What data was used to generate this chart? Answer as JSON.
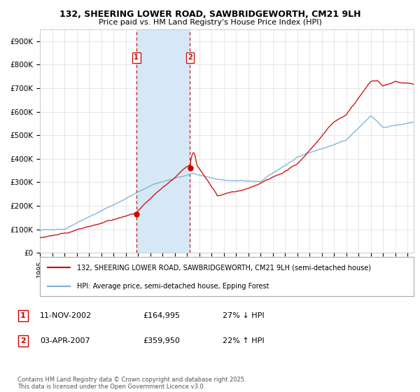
{
  "title": "132, SHEERING LOWER ROAD, SAWBRIDGEWORTH, CM21 9LH",
  "subtitle": "Price paid vs. HM Land Registry's House Price Index (HPI)",
  "house_label": "132, SHEERING LOWER ROAD, SAWBRIDGEWORTH, CM21 9LH (semi-detached house)",
  "hpi_label": "HPI: Average price, semi-detached house, Epping Forest",
  "house_color": "#cc0000",
  "hpi_color": "#7ab0d4",
  "sale1_date_num": 2002.87,
  "sale1_price": 164995,
  "sale2_date_num": 2007.25,
  "sale2_price": 359950,
  "shading_color": "#d6e8f5",
  "vline_color": "#cc0000",
  "ylim": [
    0,
    950000
  ],
  "xlim": [
    1995.0,
    2025.5
  ],
  "ylabel_ticks": [
    0,
    100000,
    200000,
    300000,
    400000,
    500000,
    600000,
    700000,
    800000,
    900000
  ],
  "ylabel_labels": [
    "£0",
    "£100K",
    "£200K",
    "£300K",
    "£400K",
    "£500K",
    "£600K",
    "£700K",
    "£800K",
    "£900K"
  ],
  "footnote": "Contains HM Land Registry data © Crown copyright and database right 2025.\nThis data is licensed under the Open Government Licence v3.0.",
  "background_color": "#ffffff",
  "grid_color": "#dddddd",
  "sale1_date_str": "11-NOV-2002",
  "sale1_price_str": "£164,995",
  "sale1_hpi_str": "27% ↓ HPI",
  "sale2_date_str": "03-APR-2007",
  "sale2_price_str": "£359,950",
  "sale2_hpi_str": "22% ↑ HPI"
}
